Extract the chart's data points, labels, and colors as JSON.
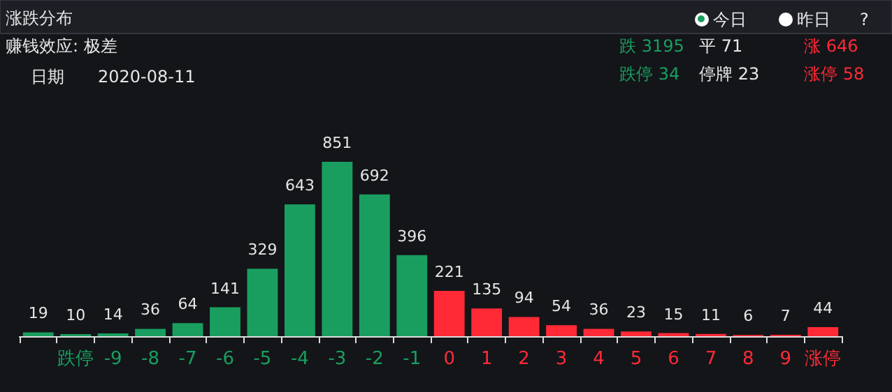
{
  "chart_data": {
    "type": "bar",
    "title": "涨跌分布",
    "annotations": [
      "今日",
      "昨日",
      "?",
      "赚钱效应: 极差",
      "日期",
      "2020-08-11",
      "跌 3195",
      "平 71",
      "涨 646",
      "跌停 34",
      "停牌 23",
      "涨停 58"
    ],
    "categories": [
      null,
      "跌停",
      "-9",
      "-8",
      "-7",
      "-6",
      "-5",
      "-4",
      "-3",
      "-2",
      "-1",
      "0",
      "1",
      "2",
      "3",
      "4",
      "5",
      "6",
      "7",
      "8",
      "9",
      "涨停"
    ],
    "values": [
      19,
      10,
      14,
      36,
      64,
      141,
      329,
      643,
      851,
      692,
      396,
      221,
      135,
      94,
      54,
      36,
      23,
      15,
      11,
      6,
      7,
      44
    ],
    "colors": [
      "#1a9e5f",
      "#1a9e5f",
      "#1a9e5f",
      "#1a9e5f",
      "#1a9e5f",
      "#1a9e5f",
      "#1a9e5f",
      "#1a9e5f",
      "#1a9e5f",
      "#1a9e5f",
      "#1a9e5f",
      "#ff2a36",
      "#ff2a36",
      "#ff2a36",
      "#ff2a36",
      "#ff2a36",
      "#ff2a36",
      "#ff2a36",
      "#ff2a36",
      "#ff2a36",
      "#ff2a36",
      "#ff2a36"
    ],
    "data_labels": true
  }
}
